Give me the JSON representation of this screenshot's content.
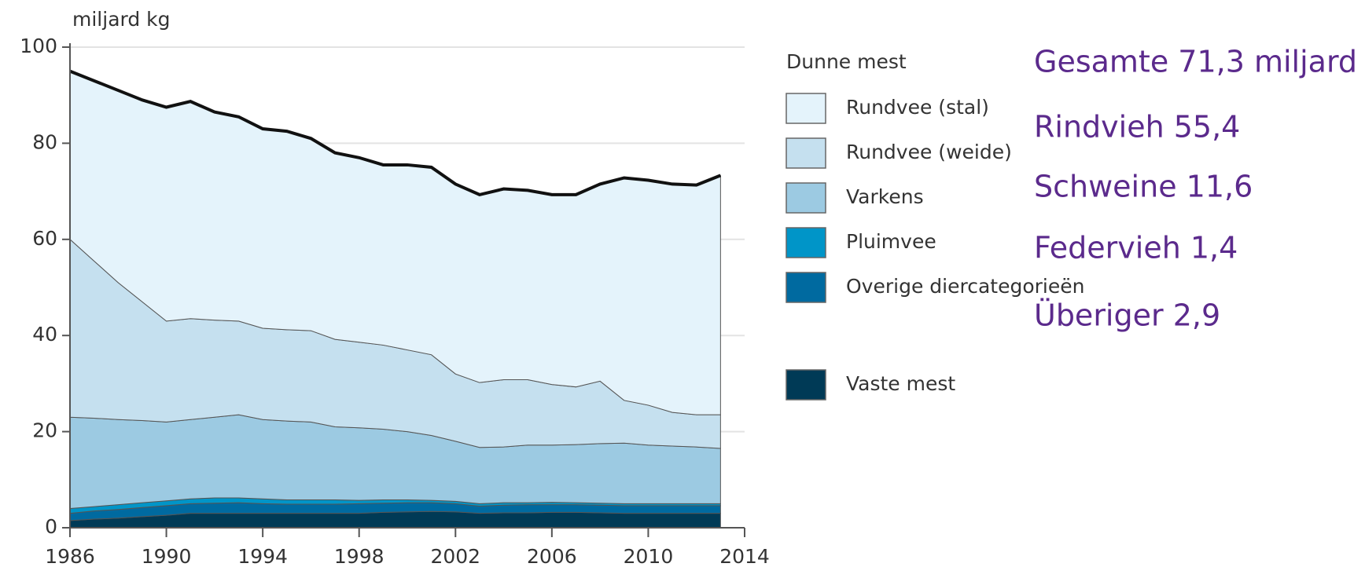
{
  "chart_data": {
    "type": "stacked_area",
    "y_label": "miljard kg",
    "x": [
      1986,
      1987,
      1988,
      1989,
      1990,
      1991,
      1992,
      1993,
      1994,
      1995,
      1996,
      1997,
      1998,
      1999,
      2000,
      2001,
      2002,
      2003,
      2004,
      2005,
      2006,
      2007,
      2008,
      2009,
      2010,
      2011,
      2012,
      2013
    ],
    "xlim": [
      1986,
      2014
    ],
    "xticks": [
      1986,
      1990,
      1994,
      1998,
      2002,
      2006,
      2010,
      2014
    ],
    "ylim": [
      0,
      100
    ],
    "yticks": [
      0,
      20,
      40,
      60,
      80,
      100
    ],
    "grid": true,
    "legend_title": "Dunne mest",
    "series": [
      {
        "name": "Rundvee (stal)",
        "color": "#e4f3fb",
        "values": [
          35.0,
          37.5,
          40.0,
          42.0,
          44.5,
          45.2,
          43.3,
          42.5,
          41.5,
          41.3,
          40.0,
          38.8,
          38.4,
          37.5,
          38.5,
          39.0,
          39.5,
          39.1,
          39.7,
          39.4,
          39.5,
          40.0,
          41.0,
          46.3,
          46.8,
          47.5,
          47.8,
          49.8
        ]
      },
      {
        "name": "Rundvee (weide)",
        "color": "#c5e0ef",
        "values": [
          37.0,
          32.7,
          28.5,
          24.7,
          21.0,
          21.0,
          20.2,
          19.5,
          19.0,
          19.0,
          19.0,
          18.2,
          17.8,
          17.5,
          17.0,
          16.8,
          14.0,
          13.5,
          14.0,
          13.6,
          12.6,
          12.0,
          13.0,
          8.9,
          8.3,
          7.0,
          6.7,
          7.0
        ]
      },
      {
        "name": "Varkens",
        "color": "#9ccae2",
        "values": [
          19.0,
          18.4,
          17.7,
          17.1,
          16.4,
          16.5,
          16.8,
          17.3,
          16.5,
          16.4,
          16.2,
          15.2,
          15.1,
          14.7,
          14.2,
          13.5,
          12.5,
          11.7,
          11.6,
          12.0,
          11.9,
          12.1,
          12.4,
          12.6,
          12.2,
          12.0,
          11.8,
          11.5
        ]
      },
      {
        "name": "Pluimvee",
        "color": "#0095c8",
        "values": [
          1.0,
          0.9,
          1.0,
          1.0,
          1.0,
          1.0,
          1.1,
          1.0,
          1.0,
          0.9,
          0.9,
          0.9,
          0.7,
          0.7,
          0.6,
          0.5,
          0.5,
          0.5,
          0.5,
          0.4,
          0.5,
          0.4,
          0.4,
          0.4,
          0.4,
          0.4,
          0.4,
          0.4
        ]
      },
      {
        "name": "Overige diercategorieën",
        "color": "#006aa0",
        "values": [
          1.5,
          1.7,
          1.8,
          1.9,
          2.0,
          2.0,
          2.1,
          2.2,
          2.0,
          1.9,
          1.9,
          1.9,
          2.0,
          1.9,
          1.9,
          1.8,
          1.7,
          1.5,
          1.6,
          1.7,
          1.6,
          1.6,
          1.6,
          1.6,
          1.6,
          1.6,
          1.6,
          1.6
        ]
      },
      {
        "name": "Vaste mest",
        "color": "#003a56",
        "values": [
          1.5,
          1.8,
          2.0,
          2.3,
          2.6,
          3.0,
          3.0,
          3.0,
          3.0,
          3.0,
          3.0,
          3.0,
          3.0,
          3.2,
          3.3,
          3.4,
          3.3,
          3.0,
          3.1,
          3.1,
          3.2,
          3.2,
          3.1,
          3.0,
          3.0,
          3.0,
          3.0,
          3.0
        ]
      }
    ],
    "annotations": [
      "Gesamte 71,3 miljard",
      "Rindvieh 55,4",
      "Schweine 11,6",
      "Federvieh 1,4",
      "Überiger 2,9"
    ]
  }
}
